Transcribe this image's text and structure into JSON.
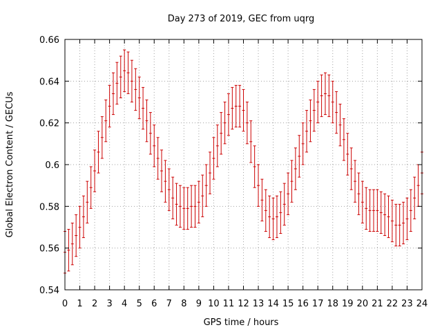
{
  "chart_data": {
    "type": "errorbar",
    "title": "Day 273 of 2019, GEC from uqrg",
    "xlabel": "GPS time / hours",
    "ylabel": "Global Electron Content / GECUs",
    "xlim": [
      0,
      24
    ],
    "ylim": [
      0.54,
      0.66
    ],
    "xticks": [
      "0",
      "1",
      "2",
      "3",
      "4",
      "5",
      "6",
      "7",
      "8",
      "9",
      "10",
      "11",
      "12",
      "13",
      "14",
      "15",
      "16",
      "17",
      "18",
      "19",
      "20",
      "21",
      "22",
      "23",
      "24"
    ],
    "yticks": [
      "0.54",
      "0.56",
      "0.58",
      "0.6",
      "0.62",
      "0.64",
      "0.66"
    ],
    "error": 0.01,
    "color": "#cc0000",
    "x": [
      0,
      0.25,
      0.5,
      0.75,
      1,
      1.25,
      1.5,
      1.75,
      2,
      2.25,
      2.5,
      2.75,
      3,
      3.25,
      3.5,
      3.75,
      4,
      4.25,
      4.5,
      4.75,
      5,
      5.25,
      5.5,
      5.75,
      6,
      6.25,
      6.5,
      6.75,
      7,
      7.25,
      7.5,
      7.75,
      8,
      8.25,
      8.5,
      8.75,
      9,
      9.25,
      9.5,
      9.75,
      10,
      10.25,
      10.5,
      10.75,
      11,
      11.25,
      11.5,
      11.75,
      12,
      12.25,
      12.5,
      12.75,
      13,
      13.25,
      13.5,
      13.75,
      14,
      14.25,
      14.5,
      14.75,
      15,
      15.25,
      15.5,
      15.75,
      16,
      16.25,
      16.5,
      16.75,
      17,
      17.25,
      17.5,
      17.75,
      18,
      18.25,
      18.5,
      18.75,
      19,
      19.25,
      19.5,
      19.75,
      20,
      20.25,
      20.5,
      20.75,
      21,
      21.25,
      21.5,
      21.75,
      22,
      22.25,
      22.5,
      22.75,
      23,
      23.25,
      23.5,
      23.75,
      24
    ],
    "y": [
      0.558,
      0.559,
      0.562,
      0.566,
      0.57,
      0.575,
      0.582,
      0.589,
      0.597,
      0.606,
      0.613,
      0.621,
      0.628,
      0.634,
      0.639,
      0.642,
      0.645,
      0.644,
      0.64,
      0.636,
      0.632,
      0.627,
      0.621,
      0.615,
      0.609,
      0.603,
      0.597,
      0.592,
      0.588,
      0.584,
      0.581,
      0.58,
      0.579,
      0.579,
      0.58,
      0.58,
      0.582,
      0.585,
      0.59,
      0.596,
      0.603,
      0.609,
      0.615,
      0.62,
      0.624,
      0.627,
      0.628,
      0.628,
      0.626,
      0.62,
      0.611,
      0.599,
      0.59,
      0.583,
      0.578,
      0.575,
      0.574,
      0.575,
      0.577,
      0.581,
      0.586,
      0.592,
      0.598,
      0.604,
      0.61,
      0.616,
      0.621,
      0.626,
      0.63,
      0.633,
      0.634,
      0.633,
      0.63,
      0.625,
      0.619,
      0.612,
      0.605,
      0.598,
      0.592,
      0.586,
      0.582,
      0.579,
      0.578,
      0.578,
      0.578,
      0.577,
      0.576,
      0.575,
      0.573,
      0.571,
      0.571,
      0.572,
      0.574,
      0.578,
      0.584,
      0.59,
      0.596
    ]
  }
}
